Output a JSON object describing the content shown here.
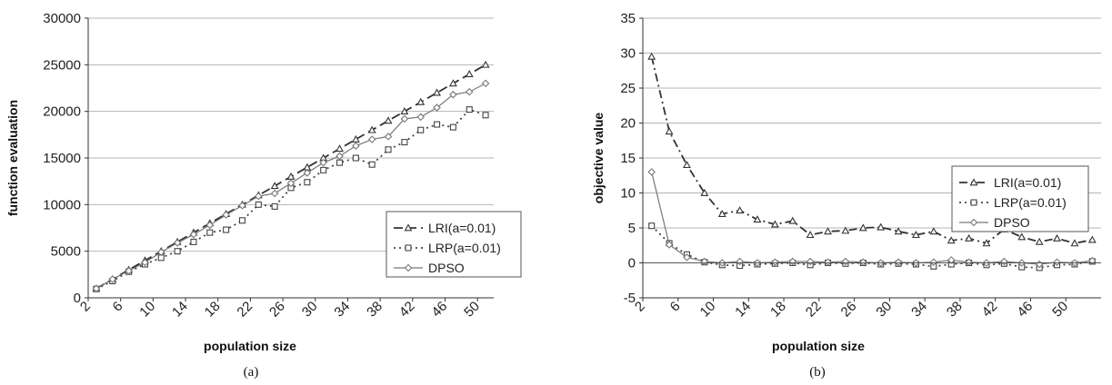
{
  "chart_data": [
    {
      "type": "line",
      "caption": "(a)",
      "xlabel": "population size",
      "ylabel": "function evaluation",
      "ylim": [
        0,
        30000
      ],
      "yticks": [
        0,
        5000,
        10000,
        15000,
        20000,
        25000,
        30000
      ],
      "xticks": [
        2,
        6,
        10,
        14,
        18,
        22,
        26,
        30,
        34,
        38,
        42,
        46,
        50
      ],
      "grid": "horizontal",
      "legend_position": "lower-right",
      "x": [
        3,
        5,
        7,
        9,
        11,
        13,
        15,
        17,
        19,
        21,
        23,
        25,
        27,
        29,
        31,
        33,
        35,
        37,
        39,
        41,
        43,
        45,
        47,
        49,
        51
      ],
      "series": [
        {
          "name": "LRI(a=0.01)",
          "style": "dashed",
          "marker": "triangle",
          "color": "#333333",
          "values": [
            1000,
            2000,
            3000,
            4000,
            5000,
            6000,
            7000,
            8000,
            9000,
            10000,
            11000,
            12000,
            13000,
            14000,
            15000,
            16000,
            17000,
            18000,
            19000,
            20000,
            21000,
            22000,
            23000,
            24000,
            25000
          ]
        },
        {
          "name": "LRP(a=0.01)",
          "style": "dotted",
          "marker": "square",
          "color": "#444444",
          "values": [
            950,
            1800,
            2800,
            3600,
            4300,
            5000,
            6000,
            7000,
            7300,
            8300,
            10000,
            9800,
            11800,
            12400,
            13700,
            14500,
            15000,
            14300,
            15900,
            16700,
            18000,
            18600,
            18300,
            20200,
            19600
          ]
        },
        {
          "name": "DPSO",
          "style": "solid",
          "marker": "diamond",
          "color": "#777777",
          "values": [
            1000,
            2000,
            2900,
            3800,
            4900,
            5900,
            6800,
            7800,
            8900,
            9900,
            10900,
            11200,
            12300,
            13400,
            14500,
            15200,
            16300,
            17000,
            17300,
            19200,
            19400,
            20400,
            21800,
            22100,
            23000
          ]
        }
      ]
    },
    {
      "type": "line",
      "caption": "(b)",
      "xlabel": "population size",
      "ylabel": "objective value",
      "ylim": [
        -5,
        35
      ],
      "yticks": [
        -5,
        0,
        5,
        10,
        15,
        20,
        25,
        30,
        35
      ],
      "xticks": [
        2,
        6,
        10,
        14,
        18,
        22,
        26,
        30,
        34,
        38,
        42,
        46,
        50
      ],
      "grid": "horizontal",
      "legend_position": "right-middle",
      "x": [
        3,
        5,
        7,
        9,
        11,
        13,
        15,
        17,
        19,
        21,
        23,
        25,
        27,
        29,
        31,
        33,
        35,
        37,
        39,
        41,
        43,
        45,
        47,
        49,
        51,
        53
      ],
      "series": [
        {
          "name": "LRI(a=0.01)",
          "style": "dashdot",
          "marker": "triangle",
          "color": "#333333",
          "values": [
            29.5,
            18.8,
            14,
            10,
            7,
            7.5,
            6.2,
            5.5,
            6,
            4,
            4.5,
            4.6,
            5,
            5.1,
            4.5,
            4,
            4.5,
            3.2,
            3.5,
            2.8,
            4.8,
            3.7,
            3,
            3.5,
            2.8,
            3.3
          ]
        },
        {
          "name": "LRP(a=0.01)",
          "style": "dotted",
          "marker": "square",
          "color": "#444444",
          "values": [
            5.3,
            2.8,
            1.2,
            0.1,
            -0.3,
            -0.4,
            -0.2,
            -0.1,
            0,
            -0.3,
            0,
            -0.1,
            0,
            -0.2,
            -0.1,
            -0.2,
            -0.5,
            -0.2,
            0,
            -0.3,
            -0.1,
            -0.6,
            -0.7,
            -0.3,
            -0.2,
            0.2
          ]
        },
        {
          "name": "DPSO",
          "style": "solid",
          "marker": "diamond",
          "color": "#777777",
          "values": [
            13,
            2.6,
            0.8,
            0.2,
            0,
            0.2,
            0,
            0.1,
            0.2,
            0.2,
            0.1,
            0.2,
            0.1,
            0,
            0.1,
            0,
            0.1,
            0.4,
            0.1,
            0,
            0.2,
            0,
            -0.2,
            0.1,
            0,
            0.3
          ]
        }
      ]
    }
  ]
}
